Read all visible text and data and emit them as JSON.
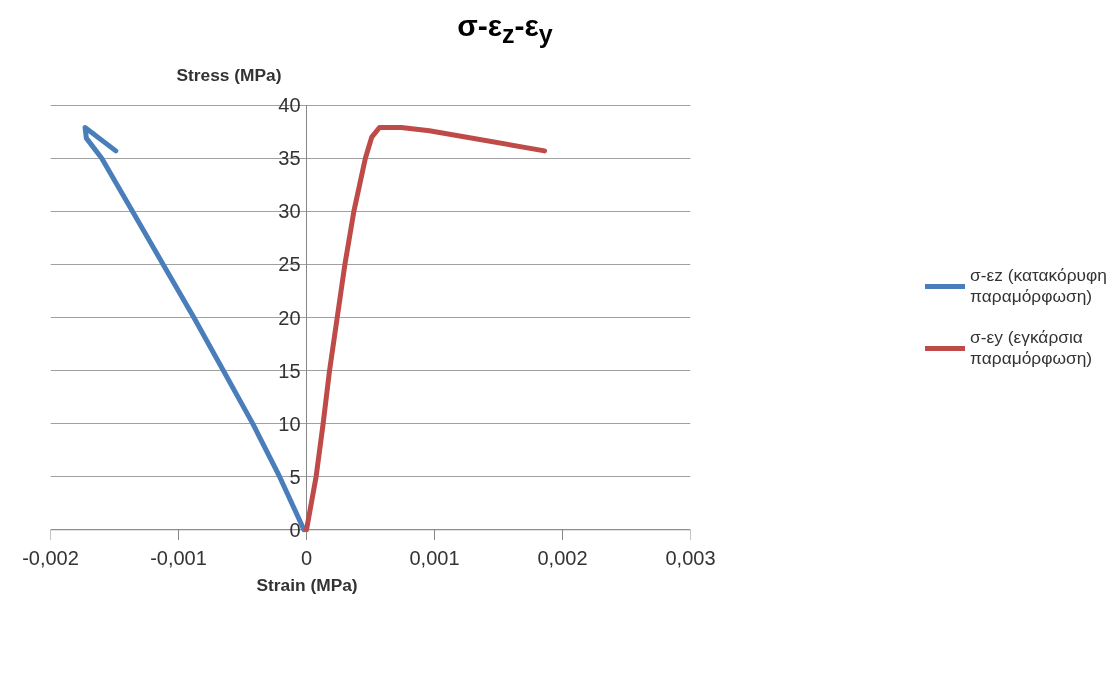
{
  "chart_data": {
    "type": "line",
    "title": "σ-ε$_{z}$-ε$_{y}$",
    "xlabel": "Strain (MPa)",
    "ylabel": "Stress (MPa)",
    "xlim": [
      -0.002,
      0.003
    ],
    "ylim": [
      0,
      40
    ],
    "xticks": [
      {
        "value": -0.002,
        "label": "-0,002"
      },
      {
        "value": -0.001,
        "label": "-0,001"
      },
      0,
      {
        "value": 0.001,
        "label": "0,001"
      },
      {
        "value": 0.002,
        "label": "0,002"
      },
      {
        "value": 0.003,
        "label": "0,003"
      }
    ],
    "yticks": [
      0,
      5,
      10,
      15,
      20,
      25,
      30,
      35,
      40
    ],
    "grid": "y",
    "legend": "right",
    "marker": "none",
    "line_style": "solid",
    "series": [
      {
        "name": "σ-εz (κατακόρυφη παραμόρφωση)",
        "color": "#4a7ebb",
        "x": [
          -2e-05,
          -0.00021,
          -0.00042,
          -0.00065,
          -0.00088,
          -0.00112,
          -0.00136,
          -0.0016,
          -0.00172,
          -0.00173,
          -0.00149
        ],
        "values": [
          0,
          5,
          10,
          15,
          20,
          25,
          30,
          35,
          36.9,
          37.9,
          35.7
        ]
      },
      {
        "name": "σ-εy (εγκάρσια παραμόρφωση)",
        "color": "#be4b48",
        "x": [
          0,
          7.5e-05,
          0.00013,
          0.00018,
          0.00024,
          0.0003,
          0.00037,
          0.00046,
          0.00051,
          0.00057,
          0.00074,
          0.00096,
          0.00186
        ],
        "values": [
          0,
          5,
          10,
          15,
          20,
          25,
          30,
          35,
          37,
          37.9,
          37.9,
          37.6,
          35.7
        ]
      }
    ]
  }
}
